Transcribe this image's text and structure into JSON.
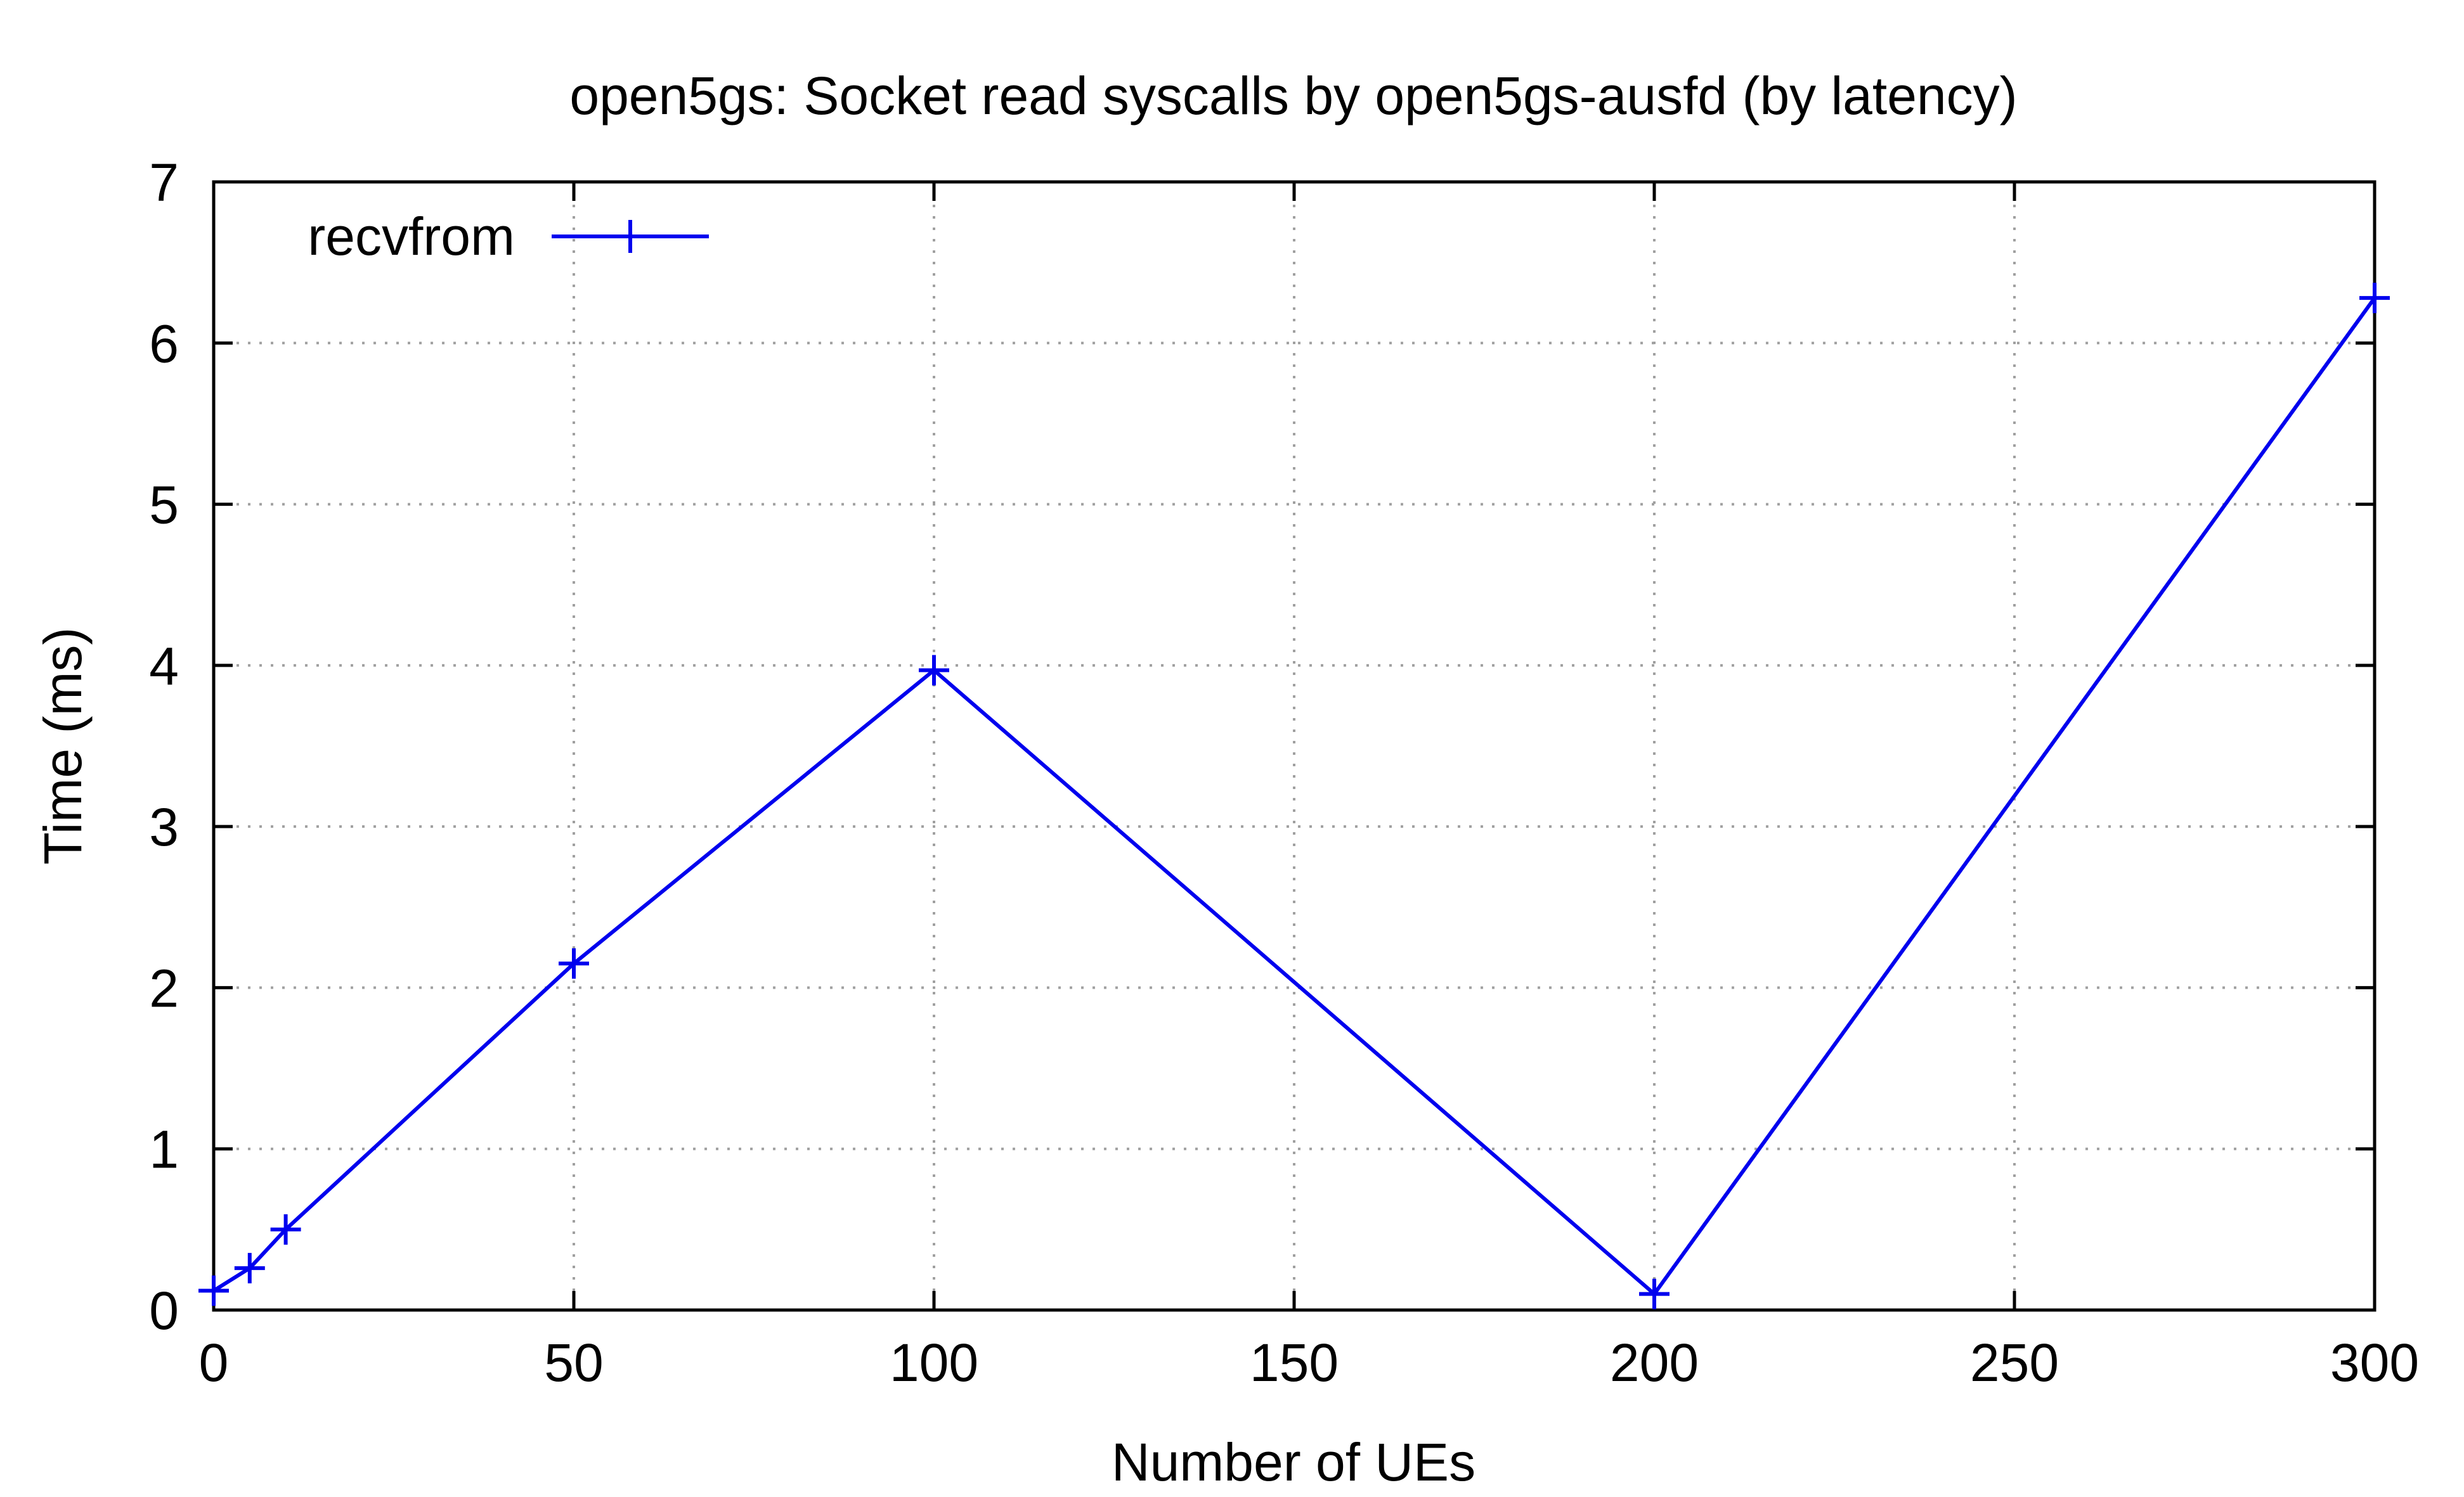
{
  "chart_data": {
    "type": "line",
    "title": "open5gs: Socket read syscalls by open5gs-ausfd (by latency)",
    "xlabel": "Number of UEs",
    "ylabel": "Time (ms)",
    "xlim": [
      0,
      300
    ],
    "ylim": [
      0,
      7
    ],
    "xticks": [
      0,
      50,
      100,
      150,
      200,
      250,
      300
    ],
    "yticks": [
      0,
      1,
      2,
      3,
      4,
      5,
      6,
      7
    ],
    "grid": true,
    "legend_position": "top-left",
    "series": [
      {
        "name": "recvfrom",
        "color": "#0000ee",
        "marker": "plus",
        "x": [
          0,
          5,
          10,
          50,
          100,
          200,
          300
        ],
        "y": [
          0.12,
          0.26,
          0.5,
          2.15,
          3.97,
          0.1,
          6.28
        ]
      }
    ]
  }
}
